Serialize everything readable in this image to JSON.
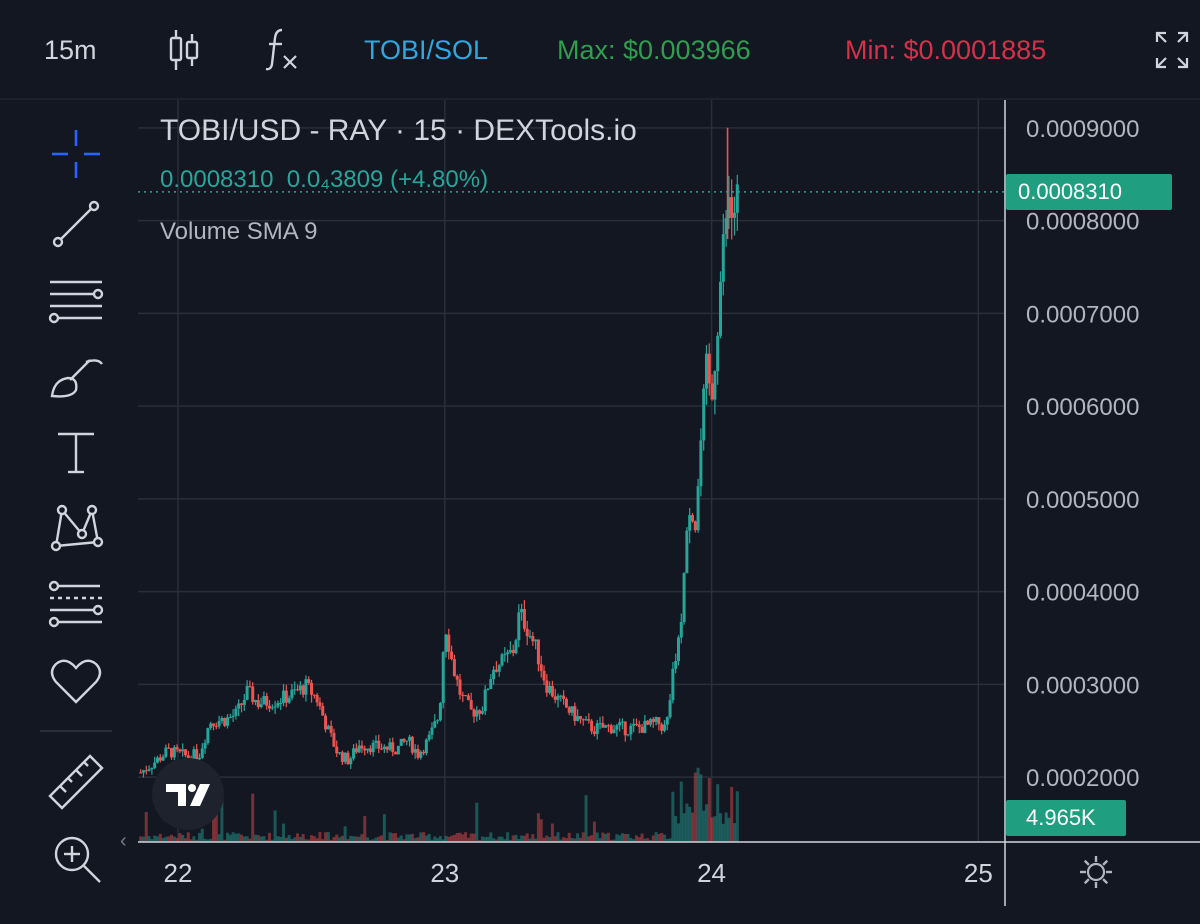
{
  "toolbar_top": {
    "interval": "15m",
    "pair": "TOBI/SOL",
    "max": "Max: $0.003966",
    "min": "Min: $0.0001885"
  },
  "legend": {
    "title": "TOBI/USD - RAY · 15 · DEXTools.io",
    "price": "0.0008310",
    "change": "0.0₄3809 (+4.80%)",
    "indicator": "Volume SMA 9"
  },
  "tools": [
    {
      "name": "crosshair-icon"
    },
    {
      "name": "trend-line-icon"
    },
    {
      "name": "horizontal-lines-icon"
    },
    {
      "name": "brush-icon"
    },
    {
      "name": "text-icon"
    },
    {
      "name": "pattern-icon"
    },
    {
      "name": "prediction-icon"
    },
    {
      "name": "favorites-heart-icon"
    },
    {
      "name": "ruler-icon"
    },
    {
      "name": "zoom-in-icon"
    }
  ],
  "colors": {
    "up": "#26a69a",
    "down": "#ef5350",
    "pair": "#2fa7e0",
    "max": "#2f9e4e",
    "min": "#d6304a",
    "tag": "#1f9e80"
  },
  "chart_data": {
    "type": "candlestick",
    "title": "TOBI/USD - RAY · 15 · DEXTools.io",
    "y_ticks": [
      "0.0009000",
      "0.0008000",
      "0.0007000",
      "0.0006000",
      "0.0005000",
      "0.0004000",
      "0.0003000",
      "0.0002000"
    ],
    "y_tick_values": [
      0.0009,
      0.0008,
      0.0007,
      0.0006,
      0.0005,
      0.0004,
      0.0003,
      0.0002
    ],
    "ylim": [
      0.00013,
      0.00093
    ],
    "x_ticks": [
      "22",
      "23",
      "24",
      "25"
    ],
    "x_tick_values": [
      22,
      23,
      24,
      25
    ],
    "xlim": [
      21.85,
      25.1
    ],
    "last_price": 0.000831,
    "last_price_label": "0.0008310",
    "volume_label": "4.965K",
    "series": [
      {
        "name": "TOBI/USD",
        "points": [
          [
            21.86,
            0.000205
          ],
          [
            21.92,
            0.000218
          ],
          [
            21.96,
            0.000228
          ],
          [
            22.04,
            0.000222
          ],
          [
            22.08,
            0.000225
          ],
          [
            22.12,
            0.00026
          ],
          [
            22.18,
            0.000262
          ],
          [
            22.22,
            0.000268
          ],
          [
            22.26,
            0.000292
          ],
          [
            22.3,
            0.00028
          ],
          [
            22.36,
            0.000282
          ],
          [
            22.42,
            0.000288
          ],
          [
            22.48,
            0.000298
          ],
          [
            22.52,
            0.000285
          ],
          [
            22.56,
            0.000252
          ],
          [
            22.6,
            0.000225
          ],
          [
            22.64,
            0.000218
          ],
          [
            22.68,
            0.000235
          ],
          [
            22.76,
            0.000232
          ],
          [
            22.82,
            0.00023
          ],
          [
            22.86,
            0.00024
          ],
          [
            22.9,
            0.000225
          ],
          [
            22.94,
            0.00024
          ],
          [
            22.98,
            0.000268
          ],
          [
            23.0,
            0.000368
          ],
          [
            23.03,
            0.00032
          ],
          [
            23.06,
            0.000288
          ],
          [
            23.1,
            0.00027
          ],
          [
            23.14,
            0.000275
          ],
          [
            23.18,
            0.000318
          ],
          [
            23.22,
            0.000325
          ],
          [
            23.26,
            0.000338
          ],
          [
            23.28,
            0.000378
          ],
          [
            23.31,
            0.00036
          ],
          [
            23.34,
            0.00034
          ],
          [
            23.38,
            0.0003
          ],
          [
            23.42,
            0.000285
          ],
          [
            23.48,
            0.000268
          ],
          [
            23.52,
            0.000258
          ],
          [
            23.56,
            0.000252
          ],
          [
            23.62,
            0.000254
          ],
          [
            23.68,
            0.000252
          ],
          [
            23.72,
            0.000253
          ],
          [
            23.76,
            0.000255
          ],
          [
            23.8,
            0.000258
          ],
          [
            23.83,
            0.000252
          ],
          [
            23.86,
            0.00032
          ],
          [
            23.88,
            0.000348
          ],
          [
            23.9,
            0.00043
          ],
          [
            23.92,
            0.0005
          ],
          [
            23.94,
            0.00047
          ],
          [
            23.96,
            0.00056
          ],
          [
            23.98,
            0.00064
          ],
          [
            24.0,
            0.0006
          ],
          [
            24.02,
            0.00068
          ],
          [
            24.04,
            0.00076
          ],
          [
            24.06,
            0.00082
          ],
          [
            24.08,
            0.0008
          ],
          [
            24.1,
            0.000831
          ]
        ]
      }
    ]
  }
}
